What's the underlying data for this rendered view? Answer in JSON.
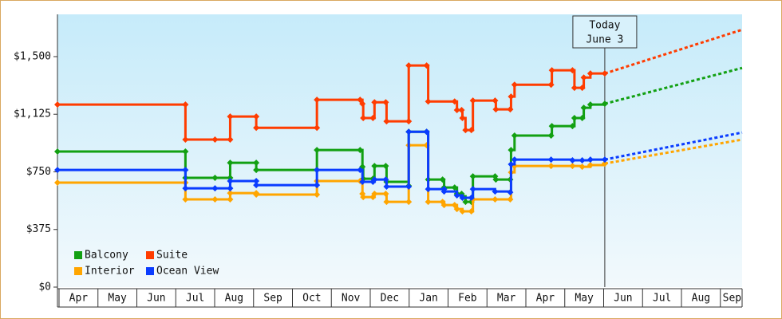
{
  "chart_data": {
    "type": "step-line",
    "xlim": [
      0,
      17.6
    ],
    "ylim": [
      0,
      1775
    ],
    "yticks": [
      {
        "value": 0,
        "label": "$0"
      },
      {
        "value": 375,
        "label": "$375"
      },
      {
        "value": 750,
        "label": "$750"
      },
      {
        "value": 1125,
        "label": "$1,125"
      },
      {
        "value": 1500,
        "label": "$1,500"
      }
    ],
    "xticks": [
      {
        "value": 0,
        "label": "Apr"
      },
      {
        "value": 1,
        "label": "May"
      },
      {
        "value": 2,
        "label": "Jun"
      },
      {
        "value": 3,
        "label": "Jul"
      },
      {
        "value": 4,
        "label": "Aug"
      },
      {
        "value": 5,
        "label": "Sep"
      },
      {
        "value": 6,
        "label": "Oct"
      },
      {
        "value": 7,
        "label": "Nov"
      },
      {
        "value": 8,
        "label": "Dec"
      },
      {
        "value": 9,
        "label": "Jan"
      },
      {
        "value": 10,
        "label": "Feb"
      },
      {
        "value": 11,
        "label": "Mar"
      },
      {
        "value": 12,
        "label": "Apr"
      },
      {
        "value": 13,
        "label": "May"
      },
      {
        "value": 14,
        "label": "Jun"
      },
      {
        "value": 15,
        "label": "Jul"
      },
      {
        "value": 16,
        "label": "Aug"
      },
      {
        "value": 17,
        "label": "Sep"
      }
    ],
    "legend": "lower left",
    "annotation": {
      "x": 14.07,
      "lines": [
        "Today",
        "June 3"
      ]
    },
    "series": [
      {
        "name": "Balcony",
        "color": "#12a012",
        "x": [
          0,
          3.29,
          3.29,
          4.05,
          4.44,
          4.44,
          5.11,
          5.11,
          6.67,
          6.67,
          7.78,
          7.84,
          7.86,
          8.11,
          8.15,
          8.44,
          8.46,
          9.03,
          9.03,
          9.49,
          9.53,
          9.9,
          9.94,
          10.21,
          10.27,
          10.39,
          10.41,
          10.49,
          10.64,
          10.68,
          11.25,
          11.27,
          11.64,
          11.66,
          11.75,
          12.69,
          12.71,
          13.24,
          13.29,
          13.49,
          13.53,
          13.7,
          14.07
        ],
        "values": [
          882,
          882,
          711,
          711,
          711,
          809,
          809,
          762,
          762,
          892,
          892,
          783,
          705,
          705,
          788,
          788,
          685,
          659,
          1011,
          1011,
          700,
          700,
          648,
          648,
          607,
          607,
          591,
          555,
          555,
          721,
          721,
          700,
          700,
          892,
          986,
          986,
          1048,
          1048,
          1100,
          1100,
          1167,
          1188,
          1193
        ],
        "forecast": {
          "x": [
            14.07,
            17.6
          ],
          "values": [
            1193,
            1426
          ]
        }
      },
      {
        "name": "Suite",
        "color": "#ff3c00",
        "x": [
          0,
          3.29,
          3.29,
          4.05,
          4.44,
          4.44,
          5.11,
          5.11,
          6.67,
          6.67,
          7.78,
          7.84,
          7.86,
          8.11,
          8.15,
          8.44,
          8.46,
          9.03,
          9.03,
          9.49,
          9.53,
          10.21,
          10.27,
          10.39,
          10.41,
          10.49,
          10.64,
          10.68,
          11.25,
          11.27,
          11.64,
          11.66,
          11.75,
          12.69,
          12.71,
          13.24,
          13.29,
          13.49,
          13.53,
          13.7,
          14.07
        ],
        "values": [
          1188,
          1188,
          960,
          960,
          960,
          1110,
          1110,
          1037,
          1037,
          1219,
          1219,
          1193,
          1100,
          1100,
          1203,
          1203,
          1079,
          1079,
          1442,
          1442,
          1208,
          1208,
          1152,
          1152,
          1100,
          1022,
          1022,
          1214,
          1214,
          1157,
          1157,
          1240,
          1317,
          1317,
          1411,
          1411,
          1297,
          1297,
          1364,
          1390,
          1390
        ],
        "forecast": {
          "x": [
            14.07,
            17.6
          ],
          "values": [
            1390,
            1675
          ]
        }
      },
      {
        "name": "Interior",
        "color": "#ffa500",
        "x": [
          0,
          3.29,
          3.29,
          4.05,
          4.44,
          4.44,
          5.11,
          5.11,
          6.67,
          6.67,
          7.78,
          7.84,
          7.86,
          8.11,
          8.15,
          8.44,
          8.46,
          9.03,
          9.03,
          9.49,
          9.53,
          9.9,
          9.94,
          10.21,
          10.27,
          10.41,
          10.64,
          10.68,
          11.25,
          11.64,
          11.66,
          11.75,
          12.69,
          13.24,
          13.49,
          13.7,
          14.07
        ],
        "values": [
          680,
          680,
          571,
          571,
          571,
          612,
          612,
          602,
          602,
          690,
          690,
          607,
          586,
          586,
          607,
          607,
          555,
          555,
          923,
          923,
          555,
          555,
          534,
          534,
          508,
          493,
          493,
          571,
          571,
          571,
          747,
          788,
          788,
          788,
          783,
          794,
          804
        ],
        "forecast": {
          "x": [
            14.07,
            17.6
          ],
          "values": [
            804,
            960
          ]
        }
      },
      {
        "name": "Ocean View",
        "color": "#0a3cff",
        "x": [
          0,
          3.29,
          3.29,
          4.05,
          4.44,
          4.44,
          5.11,
          5.11,
          6.67,
          6.67,
          7.78,
          7.84,
          8.11,
          8.15,
          8.44,
          8.46,
          9.03,
          9.03,
          9.49,
          9.53,
          9.94,
          9.94,
          10.27,
          10.41,
          10.64,
          10.68,
          11.25,
          11.64,
          11.66,
          11.75,
          12.69,
          13.24,
          13.49,
          13.7,
          14.07
        ],
        "values": [
          762,
          762,
          643,
          643,
          643,
          690,
          690,
          664,
          664,
          762,
          762,
          685,
          685,
          700,
          700,
          654,
          654,
          1011,
          1011,
          638,
          638,
          622,
          597,
          581,
          581,
          638,
          622,
          617,
          799,
          830,
          830,
          825,
          825,
          830,
          830
        ],
        "forecast": {
          "x": [
            14.07,
            17.6
          ],
          "values": [
            830,
            1006
          ]
        }
      }
    ]
  }
}
